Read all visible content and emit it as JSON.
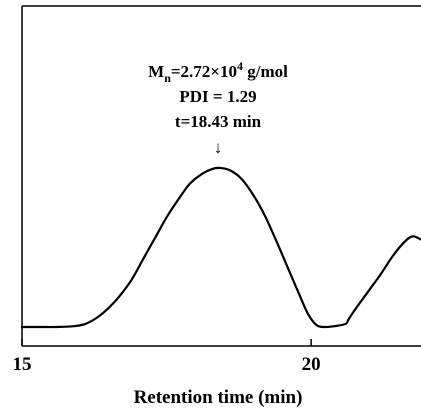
{
  "chart_data": {
    "type": "line",
    "title": "",
    "xlabel": "Retention time (min)",
    "ylabel": "",
    "xlim": [
      15,
      21.9
    ],
    "ylim": [
      0,
      1.0
    ],
    "x_ticks": [
      15,
      20
    ],
    "x_tick_labels": [
      "15",
      "20"
    ],
    "grid": false,
    "legend": "none",
    "series": [
      {
        "x": [
          15.0,
          15.3,
          15.6,
          15.9,
          16.1,
          16.3,
          16.5,
          16.7,
          16.9,
          17.1,
          17.3,
          17.5,
          17.7,
          17.9,
          18.1,
          18.3,
          18.43,
          18.6,
          18.8,
          19.0,
          19.2,
          19.4,
          19.6,
          19.8,
          19.95,
          20.1,
          20.25,
          20.4,
          20.6,
          20.65,
          20.8,
          21.0,
          21.2,
          21.4,
          21.6,
          21.75,
          21.9
        ],
        "y": [
          0.0,
          0.0,
          0.0,
          0.005,
          0.02,
          0.06,
          0.12,
          0.2,
          0.3,
          0.43,
          0.56,
          0.69,
          0.8,
          0.9,
          0.96,
          0.995,
          1.0,
          0.985,
          0.93,
          0.83,
          0.7,
          0.54,
          0.37,
          0.2,
          0.08,
          0.01,
          0.0,
          0.005,
          0.02,
          0.05,
          0.13,
          0.23,
          0.33,
          0.44,
          0.53,
          0.57,
          0.55
        ]
      }
    ],
    "annotations": {
      "mn_prefix": "M",
      "mn_sub": "n",
      "mn_value": "=2.72×10",
      "mn_exp": "4",
      "mn_unit": " g/mol",
      "pdi": "PDI = 1.29",
      "time": "t=18.43 min",
      "arrow": "↓"
    }
  }
}
